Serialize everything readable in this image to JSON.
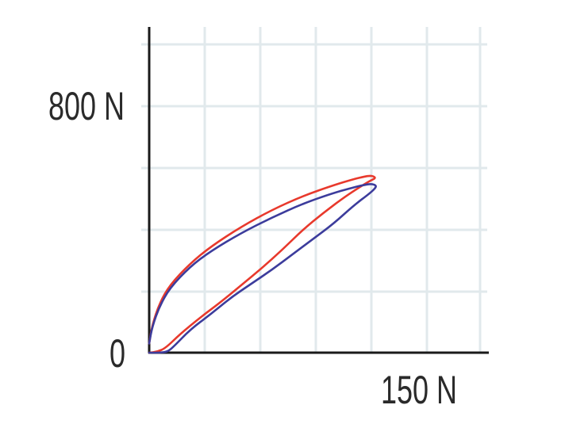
{
  "chart_data": {
    "type": "line",
    "title": "",
    "xlabel": "",
    "ylabel": "",
    "xlim": [
      0,
      165
    ],
    "ylim": [
      0,
      1060
    ],
    "grid": true,
    "x_tick_label": {
      "value": 150,
      "text": "150 N"
    },
    "y_tick_labels": [
      {
        "value": 0,
        "text": "0"
      },
      {
        "value": 800,
        "text": "800 N"
      }
    ],
    "series": [
      {
        "color": "#e8392c",
        "points": [
          [
            0,
            30
          ],
          [
            1.5,
            90
          ],
          [
            5,
            160
          ],
          [
            10,
            220
          ],
          [
            20,
            290
          ],
          [
            30,
            345
          ],
          [
            45,
            410
          ],
          [
            60,
            465
          ],
          [
            75,
            510
          ],
          [
            90,
            545
          ],
          [
            100,
            565
          ],
          [
            105,
            573
          ],
          [
            108,
            576
          ],
          [
            109.5,
            574
          ],
          [
            110.5,
            568
          ],
          [
            108,
            560
          ],
          [
            103,
            540
          ],
          [
            95,
            505
          ],
          [
            85,
            455
          ],
          [
            75,
            400
          ],
          [
            65,
            335
          ],
          [
            55,
            275
          ],
          [
            45,
            220
          ],
          [
            35,
            165
          ],
          [
            25,
            115
          ],
          [
            15,
            60
          ],
          [
            8,
            15
          ],
          [
            4,
            3
          ],
          [
            0,
            0
          ]
        ]
      },
      {
        "color": "#3c3c9c",
        "points": [
          [
            0,
            30
          ],
          [
            1.5,
            85
          ],
          [
            5,
            150
          ],
          [
            10,
            210
          ],
          [
            20,
            280
          ],
          [
            30,
            330
          ],
          [
            45,
            390
          ],
          [
            60,
            440
          ],
          [
            75,
            485
          ],
          [
            90,
            520
          ],
          [
            100,
            538
          ],
          [
            105,
            546
          ],
          [
            108,
            549
          ],
          [
            110,
            547
          ],
          [
            111,
            540
          ],
          [
            108,
            520
          ],
          [
            100,
            480
          ],
          [
            90,
            420
          ],
          [
            80,
            370
          ],
          [
            70,
            320
          ],
          [
            60,
            270
          ],
          [
            50,
            225
          ],
          [
            40,
            180
          ],
          [
            30,
            125
          ],
          [
            20,
            75
          ],
          [
            12,
            20
          ],
          [
            9,
            3
          ],
          [
            5,
            0
          ],
          [
            0,
            0
          ]
        ]
      }
    ]
  },
  "colors": {
    "grid": "#e1e9ec",
    "axis": "#1a1a1a"
  }
}
